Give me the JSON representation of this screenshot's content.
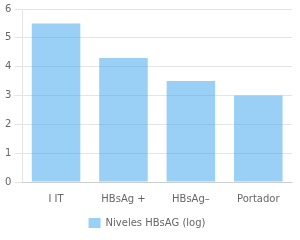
{
  "chart_data": {
    "type": "bar",
    "categories": [
      "I IT",
      "HBsAg +",
      "HBsAg–",
      "Portador"
    ],
    "series": [
      {
        "name": "Niveles HBsAG (log)",
        "values": [
          5.5,
          4.3,
          3.5,
          3.0
        ]
      }
    ],
    "ylim": [
      0,
      6
    ],
    "yticks": [
      0,
      1,
      2,
      3,
      4,
      5,
      6
    ],
    "grid": true,
    "legend": "bottom"
  }
}
